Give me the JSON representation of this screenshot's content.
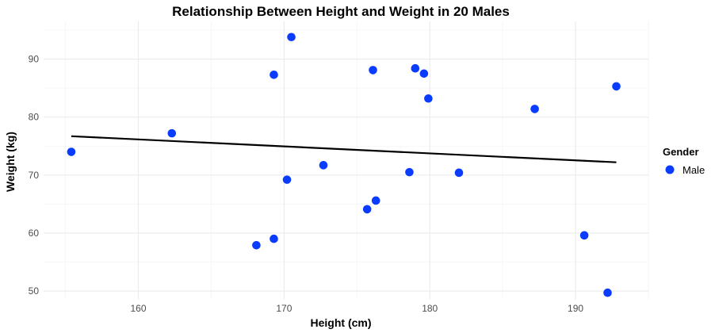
{
  "chart_data": {
    "type": "scatter",
    "title": "Relationship Between Height and Weight in 20 Males",
    "xlabel": "Height (cm)",
    "ylabel": "Weight (kg)",
    "xlim": [
      153.5,
      195.0
    ],
    "ylim": [
      48.5,
      96.5
    ],
    "x_ticks": [
      160,
      170,
      180,
      190
    ],
    "y_ticks": [
      50,
      60,
      70,
      80,
      90
    ],
    "x_tick_labels": [
      "160",
      "170",
      "180",
      "190"
    ],
    "y_tick_labels": [
      "50",
      "60",
      "70",
      "80",
      "90"
    ],
    "grid": true,
    "legend": {
      "title": "Gender",
      "position": "right",
      "entries": [
        "Male"
      ]
    },
    "series": [
      {
        "name": "Male",
        "color": "#0a3cff",
        "x": [
          155.4,
          162.3,
          168.1,
          169.3,
          169.3,
          170.2,
          170.5,
          172.7,
          175.7,
          176.1,
          176.3,
          178.6,
          179.0,
          179.6,
          179.9,
          182.0,
          187.2,
          190.6,
          192.2,
          192.8
        ],
        "y": [
          74.0,
          77.2,
          57.9,
          59.0,
          87.3,
          69.2,
          93.8,
          71.7,
          64.1,
          88.1,
          65.6,
          70.5,
          88.4,
          87.5,
          83.2,
          70.4,
          81.4,
          59.6,
          49.7,
          85.3
        ]
      }
    ],
    "trend_line": {
      "color": "#000000",
      "x": [
        155.4,
        192.8
      ],
      "y": [
        76.7,
        72.2
      ]
    }
  }
}
